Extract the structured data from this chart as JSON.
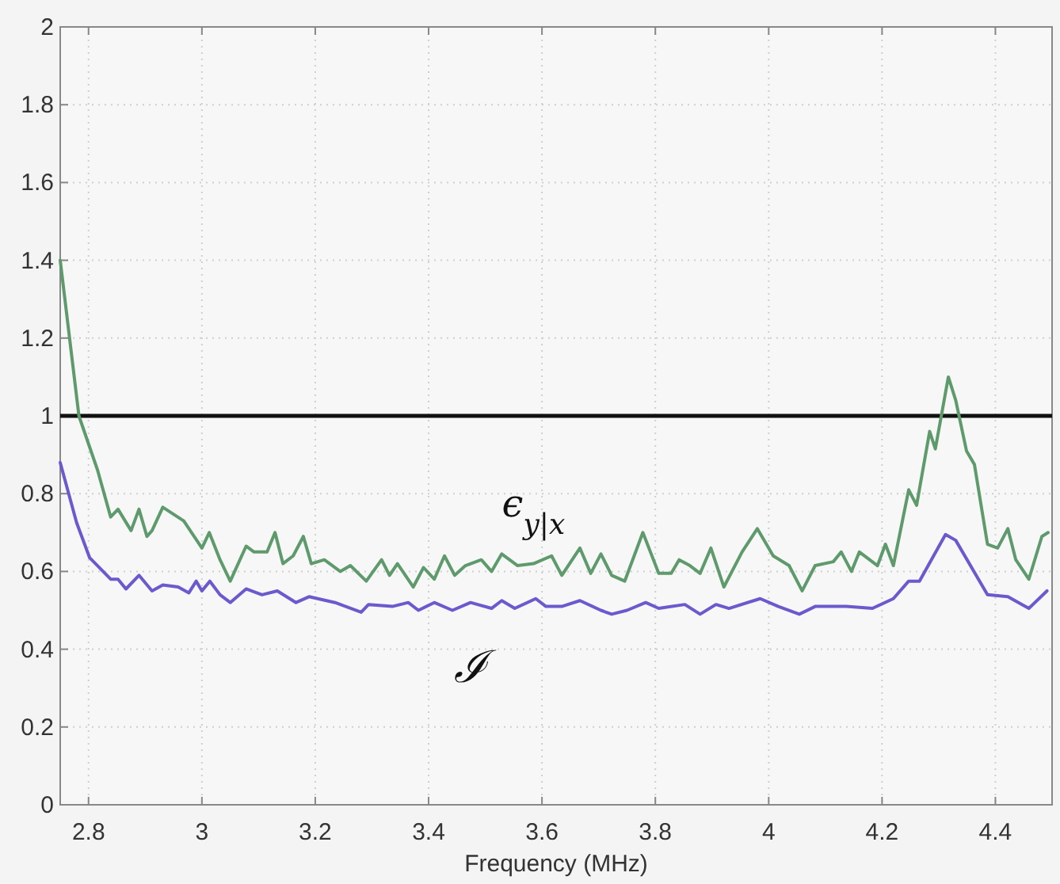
{
  "chart_data": {
    "type": "line",
    "xlabel": "Frequency (MHz)",
    "xlim": [
      2.75,
      4.5
    ],
    "xticks": [
      2.8,
      3,
      3.2,
      3.4,
      3.6,
      3.8,
      4,
      4.2,
      4.4
    ],
    "ylim": [
      0,
      2
    ],
    "yticks": [
      0,
      0.2,
      0.4,
      0.6,
      0.8,
      1,
      1.2,
      1.4,
      1.6,
      1.8,
      2
    ],
    "grid": true,
    "line_style": "solid",
    "marker": "none",
    "ref_lines": [
      {
        "axis": "y",
        "value": 1,
        "color": "#111111"
      }
    ],
    "series": [
      {
        "name": "ϵ$_{y|x}$",
        "color": "#5e9a6c",
        "x": [
          2.75,
          2.783,
          2.816,
          2.839,
          2.852,
          2.875,
          2.889,
          2.903,
          2.912,
          2.931,
          2.968,
          3.0,
          3.013,
          3.032,
          3.05,
          3.078,
          3.092,
          3.115,
          3.129,
          3.143,
          3.161,
          3.179,
          3.193,
          3.216,
          3.244,
          3.262,
          3.29,
          3.317,
          3.331,
          3.345,
          3.373,
          3.391,
          3.41,
          3.428,
          3.446,
          3.465,
          3.493,
          3.511,
          3.529,
          3.557,
          3.585,
          3.617,
          3.635,
          3.667,
          3.686,
          3.704,
          3.723,
          3.746,
          3.778,
          3.806,
          3.828,
          3.842,
          3.861,
          3.879,
          3.898,
          3.921,
          3.953,
          3.98,
          4.008,
          4.036,
          4.059,
          4.082,
          4.114,
          4.128,
          4.146,
          4.16,
          4.192,
          4.206,
          4.22,
          4.247,
          4.261,
          4.284,
          4.294,
          4.317,
          4.33,
          4.349,
          4.363,
          4.386,
          4.404,
          4.422,
          4.436,
          4.459,
          4.482,
          4.493
        ],
        "values": [
          1.4,
          1.0,
          0.86,
          0.74,
          0.76,
          0.705,
          0.76,
          0.69,
          0.705,
          0.765,
          0.73,
          0.66,
          0.7,
          0.63,
          0.575,
          0.665,
          0.65,
          0.65,
          0.7,
          0.62,
          0.64,
          0.69,
          0.62,
          0.63,
          0.6,
          0.615,
          0.575,
          0.63,
          0.59,
          0.62,
          0.56,
          0.61,
          0.58,
          0.64,
          0.59,
          0.615,
          0.63,
          0.6,
          0.645,
          0.615,
          0.62,
          0.64,
          0.59,
          0.66,
          0.595,
          0.645,
          0.59,
          0.575,
          0.7,
          0.595,
          0.595,
          0.63,
          0.615,
          0.595,
          0.66,
          0.56,
          0.65,
          0.71,
          0.64,
          0.615,
          0.55,
          0.615,
          0.625,
          0.65,
          0.6,
          0.65,
          0.615,
          0.67,
          0.615,
          0.81,
          0.77,
          0.96,
          0.915,
          1.1,
          1.04,
          0.91,
          0.875,
          0.67,
          0.66,
          0.71,
          0.63,
          0.58,
          0.69,
          0.7
        ]
      },
      {
        "name": "ℐ",
        "color": "#6a5acd",
        "x": [
          2.75,
          2.779,
          2.802,
          2.839,
          2.852,
          2.866,
          2.889,
          2.912,
          2.931,
          2.958,
          2.977,
          2.99,
          3.0,
          3.014,
          3.032,
          3.05,
          3.078,
          3.106,
          3.133,
          3.166,
          3.189,
          3.235,
          3.281,
          3.294,
          3.336,
          3.364,
          3.382,
          3.41,
          3.442,
          3.474,
          3.511,
          3.529,
          3.552,
          3.589,
          3.607,
          3.635,
          3.667,
          3.704,
          3.723,
          3.75,
          3.783,
          3.806,
          3.852,
          3.879,
          3.907,
          3.93,
          3.985,
          4.017,
          4.054,
          4.082,
          4.137,
          4.183,
          4.22,
          4.247,
          4.266,
          4.312,
          4.33,
          4.386,
          4.422,
          4.459,
          4.491
        ],
        "values": [
          0.88,
          0.725,
          0.635,
          0.58,
          0.58,
          0.555,
          0.59,
          0.55,
          0.565,
          0.56,
          0.545,
          0.575,
          0.55,
          0.575,
          0.54,
          0.52,
          0.555,
          0.54,
          0.55,
          0.52,
          0.535,
          0.52,
          0.495,
          0.515,
          0.51,
          0.52,
          0.5,
          0.52,
          0.5,
          0.52,
          0.505,
          0.525,
          0.505,
          0.53,
          0.51,
          0.51,
          0.525,
          0.5,
          0.49,
          0.5,
          0.52,
          0.505,
          0.515,
          0.49,
          0.515,
          0.505,
          0.53,
          0.51,
          0.49,
          0.51,
          0.51,
          0.505,
          0.53,
          0.575,
          0.575,
          0.695,
          0.68,
          0.54,
          0.535,
          0.505,
          0.55
        ]
      }
    ]
  }
}
